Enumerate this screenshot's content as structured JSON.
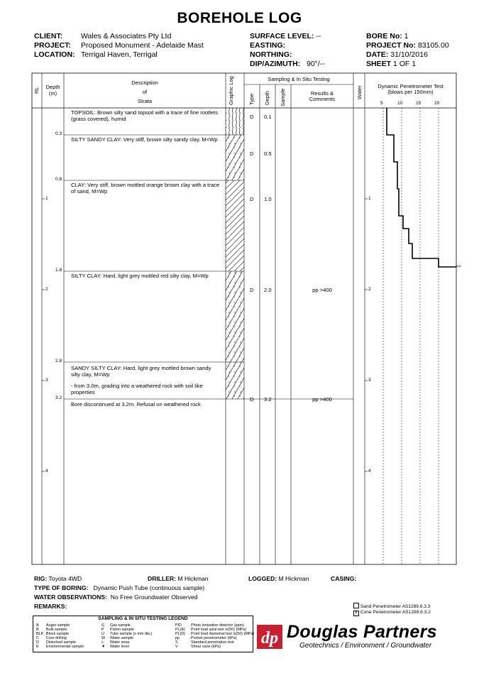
{
  "title": "BOREHOLE LOG",
  "header": {
    "client_label": "CLIENT:",
    "client": "Wales & Associates Pty Ltd",
    "project_label": "PROJECT:",
    "project": "Proposed Monument - Adelaide Mast",
    "location_label": "LOCATION:",
    "location": "Terrigal Haven, Terrigal",
    "surface_level_label": "SURFACE LEVEL:",
    "surface_level": "--",
    "easting_label": "EASTING:",
    "northing_label": "NORTHING:",
    "dip_label": "DIP/AZIMUTH:",
    "dip": "90°/--",
    "bore_no_label": "BORE No:",
    "bore_no": "1",
    "project_no_label": "PROJECT No:",
    "project_no": "83105.00",
    "date_label": "DATE:",
    "date": "31/10/2016",
    "sheet_label": "SHEET",
    "sheet": "1  OF  1"
  },
  "columns": {
    "rl": "RL",
    "depth": "Depth",
    "depth_unit": "(m)",
    "desc1": "Description",
    "desc2": "of",
    "desc3": "Strata",
    "graphic": "Graphic Log",
    "sampling": "Sampling & In Situ Testing",
    "type": "Type",
    "sdepth": "Depth",
    "sample": "Sample",
    "results1": "Results &",
    "results2": "Comments",
    "water": "Water",
    "dcp1": "Dynamic Penetrometer Test",
    "dcp2": "(blows per 150mm)",
    "dcp_ticks": [
      "5",
      "10",
      "15",
      "20"
    ]
  },
  "depth_ticks": [
    "1",
    "2",
    "3",
    "4"
  ],
  "strata": [
    {
      "depth": "",
      "text": "TOPSOIL:  Brown silty sand topsoil with a trace of fine rootlets (grass covered), humid"
    },
    {
      "depth": "0.3",
      "text": "SILTY SANDY CLAY:  Very stiff, brown silty sandy clay, M<Wp"
    },
    {
      "depth": "0.8",
      "text": "CLAY:  Very stiff, brown mottled orange brown clay with a trace of sand, M=Wp"
    },
    {
      "depth": "1.8",
      "text": "SILTY CLAY:  Hard, light grey mottled red silty clay, M=Wp"
    },
    {
      "depth": "2.8",
      "text": "SANDY SILTY CLAY:  Hard, light grey mottled brown sandy silty clay, M=Wp"
    },
    {
      "depth": "3.2",
      "text": "Bore discontinued at 3.2m.  Refusal on weathered rock"
    }
  ],
  "strata_note": "-  from 3.0m, grading into a weathered rock with soil like properties",
  "samples": [
    {
      "type": "D",
      "depth": "0.1",
      "result": ""
    },
    {
      "type": "D",
      "depth": "0.5",
      "result": ""
    },
    {
      "type": "D",
      "depth": "1.0",
      "result": ""
    },
    {
      "type": "D",
      "depth": "2.0",
      "result": "pp >400"
    },
    {
      "type": "D",
      "depth": "3.2",
      "result": "pp >400"
    }
  ],
  "dcp_refusal_mark": ">>",
  "footer": {
    "rig_label": "RIG:",
    "rig": "Toyota 4WD",
    "driller_label": "DRILLER:",
    "driller": "M Hickman",
    "logged_label": "LOGGED:",
    "logged": "M Hickman",
    "casing_label": "CASING:",
    "boring_label": "TYPE OF BORING:",
    "boring": "Dynamic Push Tube (continuous sample)",
    "water_label": "WATER OBSERVATIONS:",
    "water": "No Free Groundwater Observed",
    "remarks_label": "REMARKS:",
    "pen1": "Sand Penetrometer  AS1289.6.3.3",
    "pen2": "Cone Penetrometer  AS1289.6.3.2"
  },
  "legend": {
    "title": "SAMPLING & IN SITU TESTING LEGEND",
    "col1": [
      [
        "A",
        "Auger sample"
      ],
      [
        "B",
        "Bulk sample"
      ],
      [
        "BLK",
        "Block sample"
      ],
      [
        "C",
        "Core drilling"
      ],
      [
        "D",
        "Disturbed sample"
      ],
      [
        "E",
        "Environmental sample"
      ]
    ],
    "col2": [
      [
        "G",
        "Gas sample"
      ],
      [
        "P",
        "Piston sample"
      ],
      [
        "U",
        "Tube sample (x mm dia.)"
      ],
      [
        "W",
        "Water sample"
      ],
      [
        "▷",
        "Water seep"
      ],
      [
        "▼",
        "Water level"
      ]
    ],
    "col3": [
      [
        "PID",
        "Photo ionisation detector (ppm)"
      ],
      [
        "PL(A)",
        "Point load axial test Is(50) (MPa)"
      ],
      [
        "PL(D)",
        "Point load diametral test Is(50) (MPa)"
      ],
      [
        "pp",
        "Pocket penetrometer (kPa)"
      ],
      [
        "S",
        "Standard penetration test"
      ],
      [
        "V",
        "Shear vane (kPa)"
      ]
    ]
  },
  "brand": {
    "name": "Douglas Partners",
    "tagline": "Geotechnics  /  Environment  /  Groundwater",
    "color": "#c8202f"
  }
}
